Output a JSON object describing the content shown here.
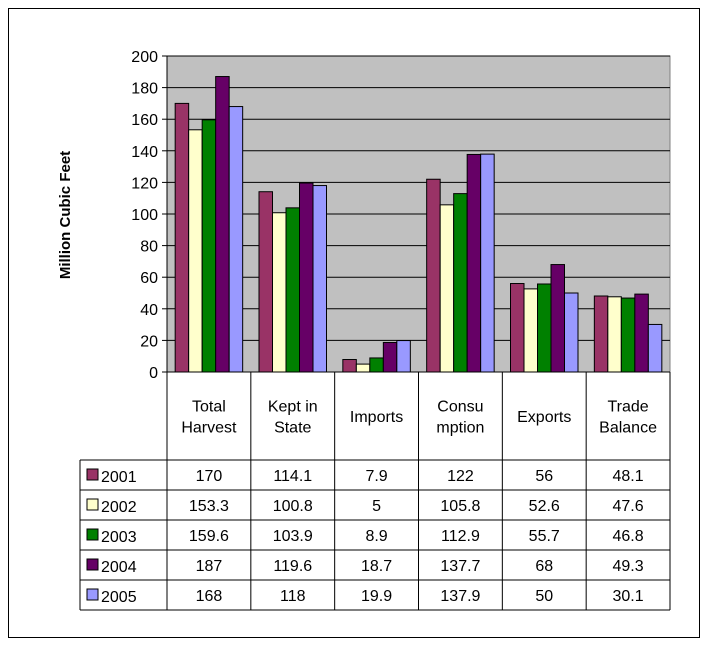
{
  "chart_data": {
    "type": "bar",
    "ylabel": "Million Cubic Feet",
    "ylim": [
      0,
      200
    ],
    "ytick_step": 20,
    "yticks": [
      "0",
      "20",
      "40",
      "60",
      "80",
      "100",
      "120",
      "140",
      "160",
      "180",
      "200"
    ],
    "grid": true,
    "plot_background": "#c0c0c0",
    "categories": [
      [
        "Total",
        "Harvest"
      ],
      [
        "Kept in",
        "State"
      ],
      [
        "Imports"
      ],
      [
        "Consu",
        "mption"
      ],
      [
        "Exports"
      ],
      [
        "Trade",
        "Balance"
      ]
    ],
    "series": [
      {
        "name": "2001",
        "color": "#993366",
        "values": [
          170,
          114.1,
          7.9,
          122,
          56,
          48.1
        ],
        "labels": [
          "170",
          "114.1",
          "7.9",
          "122",
          "56",
          "48.1"
        ]
      },
      {
        "name": "2002",
        "color": "#ffffcc",
        "values": [
          153.3,
          100.8,
          5,
          105.8,
          52.6,
          47.6
        ],
        "labels": [
          "153.3",
          "100.8",
          "5",
          "105.8",
          "52.6",
          "47.6"
        ]
      },
      {
        "name": "2003",
        "color": "#008000",
        "values": [
          159.6,
          103.9,
          8.9,
          112.9,
          55.7,
          46.8
        ],
        "labels": [
          "159.6",
          "103.9",
          "8.9",
          "112.9",
          "55.7",
          "46.8"
        ]
      },
      {
        "name": "2004",
        "color": "#660066",
        "values": [
          187,
          119.6,
          18.7,
          137.7,
          68,
          49.3
        ],
        "labels": [
          "187",
          "119.6",
          "18.7",
          "137.7",
          "68",
          "49.3"
        ]
      },
      {
        "name": "2005",
        "color": "#9999ff",
        "values": [
          168,
          118,
          19.9,
          137.9,
          50,
          30.1
        ],
        "labels": [
          "168",
          "118",
          "19.9",
          "137.9",
          "50",
          "30.1"
        ]
      }
    ]
  }
}
